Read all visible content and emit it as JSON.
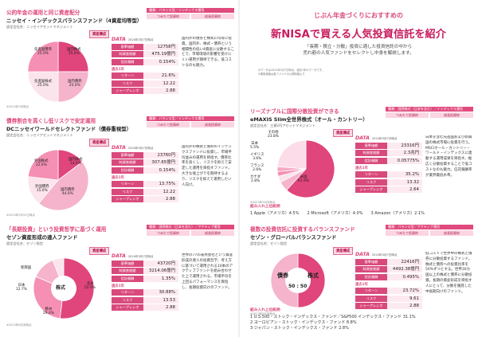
{
  "left_page": {
    "funds": [
      {
        "category": "公的年金の運用と同じ資産配分",
        "name": "ニッセイ・インデックスバランスファンド（4資産均等型）",
        "company": "設定会社名：ニッセイアセットマネジメント",
        "tag_header": "種類：バランス型／インデックス運用",
        "tag_a": "つみたて投資枠",
        "tag_b": "成長投資枠",
        "asset_label": "資産構成",
        "pie_labels": [
          "国内株式\n25.0%",
          "国内債券\n25.0%",
          "先進国株式\n25.0%",
          "先進国債券\n25.0%"
        ],
        "pie_note": "※2024年3月時点",
        "data_label": "DATA",
        "data_date": "2024年3月7日時点",
        "rows": [
          {
            "k": "基準価額",
            "v": "12758円"
          },
          {
            "k": "純資産総額",
            "v": "475.19億円"
          },
          {
            "k": "信託報酬",
            "v": "0.154%"
          }
        ],
        "sub_label": "過去1年",
        "rows2": [
          {
            "k": "リターン",
            "v": "21.6%"
          },
          {
            "k": "リスク",
            "v": "12.22"
          },
          {
            "k": "シャープレシオ",
            "v": "2.88"
          }
        ],
        "desc": "国内外の債券と株式に均等に投資。国内外、株式・債券という相関性の低い4資産に分散することで、市場環境の影響を受けにくい運用が期待できる。低コストなのも魅力。",
        "pie_values": [
          25,
          25,
          25,
          25
        ],
        "pie_colors": [
          "#e0457b",
          "#f5b3cc",
          "#fbe4ec",
          "#f58fb4"
        ]
      },
      {
        "category": "債券割合を高くし低リスクで安定運用",
        "name": "DCニッセイワールドセレクトファンド（債券重視型）",
        "company": "設定会社名：ニッセイアセットマネジメント",
        "tag_header": "種類：バランス型／インデックス運用",
        "tag_a": "つみたて投資枠",
        "tag_b": "成長投資枠",
        "asset_label": "資産構成",
        "pie_labels": [
          "国内株式\n14.0%",
          "国内債券\n44.0%",
          "外国債券\n15.0%",
          "外国株式\n22.0%"
        ],
        "pie_note": "※2023年5月31日時点",
        "data_label": "DATA",
        "data_date": "2024年3月7日時点",
        "rows": [
          {
            "k": "基準価額",
            "v": "23760円"
          },
          {
            "k": "純資産総額",
            "v": "307.65億円"
          },
          {
            "k": "信託報酬",
            "v": "0.154%"
          }
        ],
        "sub_label": "過去1年",
        "rows2": [
          {
            "k": "リターン",
            "v": "13.75%"
          },
          {
            "k": "リスク",
            "v": "12.22"
          },
          {
            "k": "シャープレシオ",
            "v": "2.88"
          }
        ],
        "desc": "国内外の株式と債券のインデックスファンドに投資し、市場平均並みの運用を目指す。債券比率を高くし、リスクを抑えて安定した運用を目指すファンド。大きな値上がりを期待するより、リスクを抑えて運用したい人向け。",
        "pie_values": [
          14,
          44,
          15,
          22
        ],
        "pie_colors": [
          "#e0457b",
          "#f5b3cc",
          "#fbe4ec",
          "#f58fb4"
        ]
      },
      {
        "category": "「長期投資」という投資哲学に基づく運用",
        "name": "セゾン資産形成の達人ファンド",
        "company": "設定会社名：セゾン投信",
        "tag_header": "種類：国際株式（日本を含む）／アクティブ運用",
        "tag_a": "つみたて投資枠",
        "tag_b": "成長投資枠",
        "asset_label": "資産構成",
        "pie_labels": [
          "株式",
          "北米\n52.0%",
          "欧州\n29.4%",
          "日本\n12.7%",
          "新興国"
        ],
        "pie_note": "※2023年8月末時点",
        "data_label": "DATA",
        "data_date": "2024年3月7日時点",
        "rows": [
          {
            "k": "基準価額",
            "v": "43720円"
          },
          {
            "k": "純資産総額",
            "v": "3214.06億円"
          },
          {
            "k": "信託報酬",
            "v": "1.35%"
          }
        ],
        "sub_label": "過去1年",
        "rows2": [
          {
            "k": "リターン",
            "v": "30.88%"
          },
          {
            "k": "リスク",
            "v": "13.53"
          },
          {
            "k": "シャープレシオ",
            "v": "2.88"
          }
        ],
        "desc": "世界の77の運用会社という資産形成の達人の投資哲学、考え方に基づいて運用される10本のアクティブファンドを組み合わせた上で運用される。市場平均を上回るパフォーマンスを目指し、長期投資向けのファンド。",
        "pie_values": [
          52,
          29.4,
          12.7,
          5.9
        ],
        "pie_colors": [
          "#e0457b",
          "#f58fb4",
          "#f5b3cc",
          "#fbe4ec"
        ]
      }
    ]
  },
  "right_page": {
    "kicker": "じぶん年金づくりにおすすめの",
    "title": "新NISAで買える人気投資信託を紹介",
    "intro": [
      "「長期・積立・分散」投資に適した投資信託の中から",
      "売れ筋の人気ファンドをセレクトし中身を解説します。"
    ],
    "notes": [
      "※データは2024年3月7日時点。過去1年のデータです。",
      "※運用実績は各ファンドの公開情報より"
    ],
    "funds": [
      {
        "category": "リーズナブルに国際分散投資ができる",
        "name": "eMAXIS Slim全世界株式（オール・カントリー）",
        "company": "設定会社名：三菱UFJアセットマネジメント",
        "tag_header": "種類：国際株式（日本を含む）／インデックス運用",
        "tag_a": "つみたて投資枠",
        "tag_b": "成長投資枠",
        "asset_label": "資産構成",
        "pie_labels": [
          "米国\n61.9%",
          "日本\n5.5%",
          "イギリス\n3.6%",
          "フランス\n2.6%",
          "カナダ\n2.8%",
          "その他\n23.8%"
        ],
        "pie_note": "※2023年5月末時点",
        "data_label": "DATA",
        "data_date": "2024年3月7日時点",
        "rows": [
          {
            "k": "基準価額",
            "v": "23316円"
          },
          {
            "k": "純資産総額",
            "v": "2.3兆円"
          },
          {
            "k": "信託報酬",
            "v": "0.05775%"
          }
        ],
        "sub_label": "過去1年",
        "rows2": [
          {
            "k": "リターン",
            "v": "35.2%"
          },
          {
            "k": "リスク",
            "v": "13.32"
          },
          {
            "k": "シャープレシオ",
            "v": "2.64"
          }
        ],
        "desc": "日本を含む先進国および新興国の株式市場に投資を行う。MSCIオール・カントリー・ワールド・インデックスに連動する運用成果を目指す。幅広く分散投資することで低コストなのも魅力。信託報酬率が業界最低水準。",
        "top3_title": "組み入れ上位銘柄",
        "top3": [
          "1 Apple（アメリカ）4.5%",
          "2 Microsoft（アメリカ）4.0%",
          "3 Amazon（アメリカ）2.1%"
        ],
        "pie_values": [
          61.9,
          5.5,
          3.6,
          2.6,
          2.8,
          23.8
        ],
        "pie_colors": [
          "#e0457b",
          "#f5b3cc",
          "#fbe4ec",
          "#f58fb4",
          "#f7a8c5",
          "#fcdce8"
        ]
      },
      {
        "category": "複数の投資信託に投資するバランスファンド",
        "name": "セゾン・グローバルバランスファンド",
        "company": "設定会社名：セゾン投信",
        "tag_header": "種類：バランス型／アクティブ運用",
        "tag_a": "つみたて投資枠",
        "tag_b": "成長投資枠",
        "asset_label": "資産構成",
        "pie_labels": [
          "債券",
          "株式",
          "50 : 50"
        ],
        "pie_note": "※2023年8月末時点",
        "data_label": "DATA",
        "data_date": "2024年3月7日時点",
        "rows": [
          {
            "k": "基準価額",
            "v": "22416円"
          },
          {
            "k": "純資産総額",
            "v": "4492.38億円"
          },
          {
            "k": "信託報酬",
            "v": "0.495%"
          }
        ],
        "sub_label": "過去1年",
        "rows2": [
          {
            "k": "リターン",
            "v": "23.72%"
          },
          {
            "k": "リスク",
            "v": "9.61"
          },
          {
            "k": "シャープレシオ",
            "v": "2.88"
          }
        ],
        "desc": "低コストで世界中の株式と債券に分散投資するファンド。株式と債券への投資比率を50%ずつとする。世界30カ国以上の株式と債券に分散投資。長期の資産形成を目指す人にとって、分散を徹底した中長期向けのファンド。",
        "top3_title": "組み入れ上位銘柄",
        "top3": [
          "1 U.S.500・ストック・インデックス・ファンド／S&P500 インデックス・ファンド 31.1%",
          "2 ヨーロピアン・ストック・インデックス・ファンド 8.8%",
          "3 ジャパン・ストック・インデックス・ファンド 2.8%"
        ],
        "pie_values": [
          50,
          50
        ],
        "pie_colors": [
          "#e0457b",
          "#f5b3cc"
        ]
      }
    ]
  }
}
